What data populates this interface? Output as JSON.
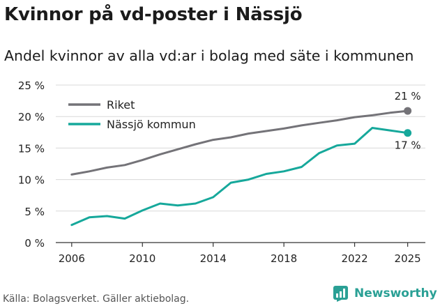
{
  "title": "Kvinnor på vd-poster i Nässjö",
  "subtitle": "Andel kvinnor av alla vd:ar i bolag med säte i kommunen",
  "source": "Källa: Bolagsverket. Gäller aktiebolag.",
  "brand": "Newsworthy",
  "colors": {
    "riket": "#747378",
    "nassjo": "#16a89b",
    "grid": "#d8d8d8",
    "axis": "#333333",
    "brand": "#2aa095"
  },
  "chart_data": {
    "type": "line",
    "title": "Kvinnor på vd-poster i Nässjö",
    "subtitle": "Andel kvinnor av alla vd:ar i bolag med säte i kommunen",
    "xlabel": "",
    "ylabel": "",
    "x": [
      2006,
      2007,
      2008,
      2009,
      2010,
      2011,
      2012,
      2013,
      2014,
      2015,
      2016,
      2017,
      2018,
      2019,
      2020,
      2021,
      2022,
      2023,
      2024,
      2025
    ],
    "xticks": [
      "2006",
      "2010",
      "2014",
      "2018",
      "2022",
      "2025"
    ],
    "xtick_values": [
      2006,
      2010,
      2014,
      2018,
      2022,
      2025
    ],
    "yticks": [
      "0 %",
      "5 %",
      "10 %",
      "15 %",
      "20 %",
      "25 %"
    ],
    "ytick_values": [
      0,
      5,
      10,
      15,
      20,
      25
    ],
    "xlim": [
      2005.1,
      2026.0
    ],
    "ylim": [
      0,
      25
    ],
    "grid": true,
    "legend_position": "top-left",
    "series": [
      {
        "name": "Riket",
        "color": "#747378",
        "values": [
          10.8,
          11.3,
          11.9,
          12.3,
          13.1,
          14.0,
          14.8,
          15.6,
          16.3,
          16.7,
          17.3,
          17.7,
          18.1,
          18.6,
          19.0,
          19.4,
          19.9,
          20.2,
          20.6,
          20.9
        ],
        "end_label": "21 %"
      },
      {
        "name": "Nässjö kommun",
        "color": "#16a89b",
        "values": [
          2.8,
          4.0,
          4.2,
          3.8,
          5.1,
          6.2,
          5.9,
          6.2,
          7.2,
          9.5,
          10.0,
          10.9,
          11.3,
          12.0,
          14.2,
          15.4,
          15.7,
          18.2,
          17.8,
          17.4
        ],
        "end_label": "17 %"
      }
    ]
  }
}
